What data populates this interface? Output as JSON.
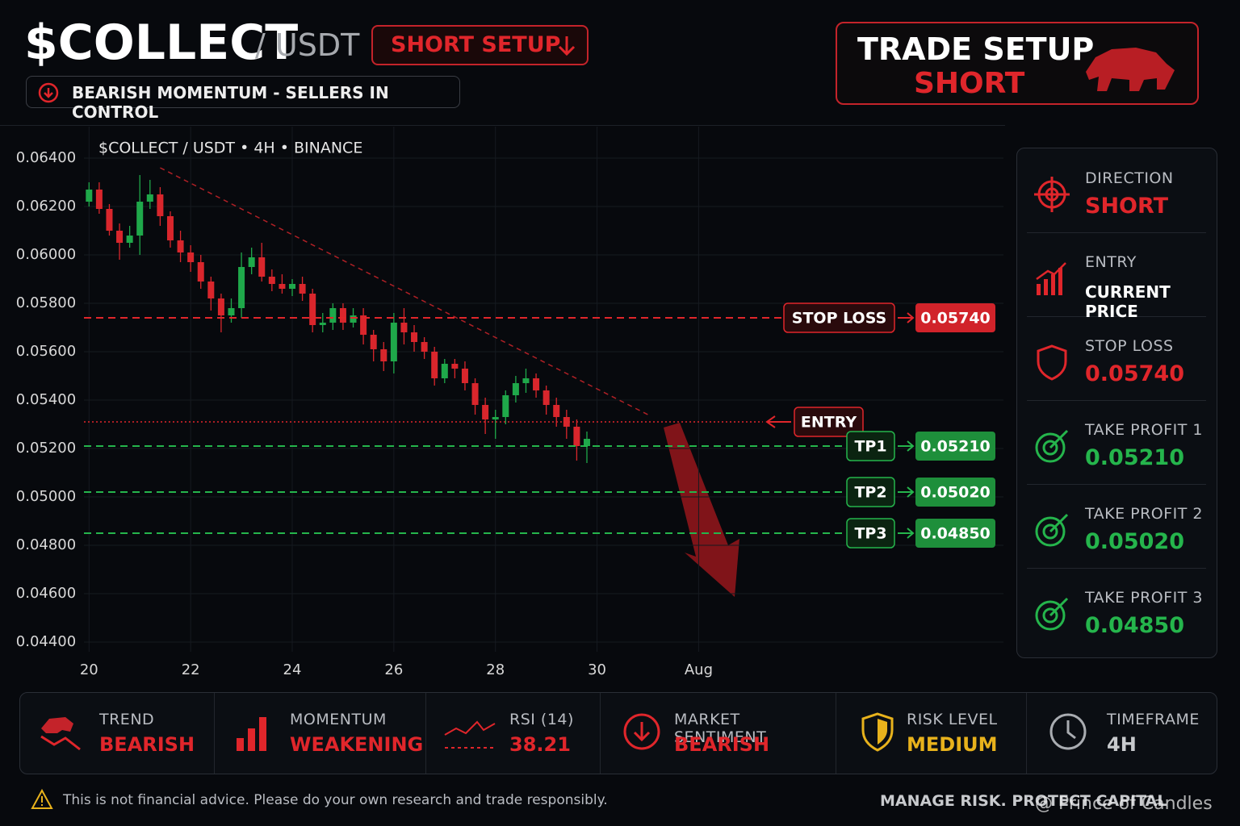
{
  "header": {
    "symbol": "$COLLECT",
    "pair": "/ USDT",
    "badge": "SHORT SETUP",
    "subtitle": "BEARISH MOMENTUM - SELLERS IN CONTROL",
    "setup_title": "TRADE SETUP",
    "setup_side": "SHORT"
  },
  "chart_data": {
    "type": "candlestick",
    "title": "$COLLECT / USDT • 4H • BINANCE",
    "candles": {
      "x": [
        20.0,
        20.2,
        20.4,
        20.6,
        20.8,
        21.0,
        21.2,
        21.4,
        21.6,
        21.8,
        22.0,
        22.2,
        22.4,
        22.6,
        22.8,
        23.0,
        23.2,
        23.4,
        23.6,
        23.8,
        24.0,
        24.2,
        24.4,
        24.6,
        24.8,
        25.0,
        25.2,
        25.4,
        25.6,
        25.8,
        26.0,
        26.2,
        26.4,
        26.6,
        26.8,
        27.0,
        27.2,
        27.4,
        27.6,
        27.8,
        28.0,
        28.2,
        28.4,
        28.6,
        28.8,
        29.0,
        29.2,
        29.4,
        29.6,
        29.8
      ],
      "open": [
        0.0622,
        0.0627,
        0.0619,
        0.061,
        0.0605,
        0.0608,
        0.0622,
        0.0625,
        0.0616,
        0.0606,
        0.0601,
        0.0597,
        0.0589,
        0.0582,
        0.0575,
        0.0578,
        0.0595,
        0.0599,
        0.0591,
        0.0588,
        0.0586,
        0.0588,
        0.0584,
        0.0571,
        0.0572,
        0.0578,
        0.0572,
        0.0575,
        0.0567,
        0.0561,
        0.0556,
        0.0572,
        0.0568,
        0.0564,
        0.056,
        0.0549,
        0.0555,
        0.0553,
        0.0547,
        0.0538,
        0.0532,
        0.0533,
        0.0542,
        0.0547,
        0.0549,
        0.0544,
        0.0538,
        0.0533,
        0.0529,
        0.0521
      ],
      "high": [
        0.063,
        0.063,
        0.0621,
        0.0613,
        0.0612,
        0.0633,
        0.0631,
        0.0628,
        0.0618,
        0.061,
        0.0604,
        0.06,
        0.0591,
        0.0584,
        0.0582,
        0.0601,
        0.0603,
        0.0605,
        0.0594,
        0.0592,
        0.059,
        0.0591,
        0.0586,
        0.0576,
        0.058,
        0.058,
        0.0578,
        0.0578,
        0.0569,
        0.0564,
        0.0576,
        0.0578,
        0.0571,
        0.0566,
        0.0562,
        0.0557,
        0.0557,
        0.0556,
        0.0549,
        0.0541,
        0.0536,
        0.0544,
        0.055,
        0.0553,
        0.0551,
        0.0546,
        0.0541,
        0.0536,
        0.0532,
        0.0527
      ],
      "low": [
        0.062,
        0.0617,
        0.0608,
        0.0598,
        0.0603,
        0.06,
        0.0619,
        0.0612,
        0.0603,
        0.0597,
        0.0593,
        0.0586,
        0.0577,
        0.0568,
        0.0572,
        0.0574,
        0.0592,
        0.0589,
        0.0585,
        0.0584,
        0.0583,
        0.0581,
        0.0568,
        0.0568,
        0.0569,
        0.0569,
        0.057,
        0.0563,
        0.0556,
        0.0552,
        0.0551,
        0.0563,
        0.056,
        0.0557,
        0.0546,
        0.0547,
        0.0549,
        0.0544,
        0.0534,
        0.0526,
        0.0524,
        0.053,
        0.0539,
        0.0543,
        0.0541,
        0.0534,
        0.0529,
        0.0524,
        0.0515,
        0.0514
      ],
      "close": [
        0.0627,
        0.0619,
        0.061,
        0.0605,
        0.0608,
        0.0622,
        0.0625,
        0.0616,
        0.0606,
        0.0601,
        0.0597,
        0.0589,
        0.0582,
        0.0575,
        0.0578,
        0.0595,
        0.0599,
        0.0591,
        0.0588,
        0.0586,
        0.0588,
        0.0584,
        0.0571,
        0.0572,
        0.0578,
        0.0572,
        0.0575,
        0.0567,
        0.0561,
        0.0556,
        0.0572,
        0.0568,
        0.0564,
        0.056,
        0.0549,
        0.0555,
        0.0553,
        0.0547,
        0.0538,
        0.0532,
        0.0533,
        0.0542,
        0.0547,
        0.0549,
        0.0544,
        0.0538,
        0.0533,
        0.0529,
        0.0521,
        0.0524
      ]
    },
    "up_color": "#1fa84a",
    "down_color": "#d9262c",
    "xlim": [
      19.9,
      38.0
    ],
    "xticks": [
      20,
      22,
      24,
      26,
      28,
      30,
      {
        "value": 32,
        "label": "Aug"
      }
    ],
    "ylim": [
      0.0436,
      0.0653
    ],
    "yticks": [
      {
        "value": 0.044,
        "label": "0.04400"
      },
      {
        "value": 0.046,
        "label": "0.04600"
      },
      {
        "value": 0.048,
        "label": "0.04800"
      },
      {
        "value": 0.05,
        "label": "0.05000"
      },
      {
        "value": 0.052,
        "label": "0.05200"
      },
      {
        "value": 0.054,
        "label": "0.05400"
      },
      {
        "value": 0.056,
        "label": "0.05600"
      },
      {
        "value": 0.058,
        "label": "0.05800"
      },
      {
        "value": 0.06,
        "label": "0.06000"
      },
      {
        "value": 0.062,
        "label": "0.06200"
      },
      {
        "value": 0.064,
        "label": "0.06400"
      }
    ],
    "grid": true,
    "trendline": {
      "x": [
        21.4,
        31.0
      ],
      "y": [
        0.0636,
        0.0534
      ],
      "color": "#d9262c"
    },
    "levels": [
      {
        "name": "STOP LOSS",
        "value": 0.0574,
        "label": "0.05740",
        "color": "#e0262b"
      },
      {
        "name": "ENTRY",
        "value": 0.0531,
        "color": "#e0262b"
      },
      {
        "name": "TP1",
        "value": 0.0521,
        "label": "0.05210",
        "color": "#25b54c"
      },
      {
        "name": "TP2",
        "value": 0.0502,
        "label": "0.05020",
        "color": "#25b54c"
      },
      {
        "name": "TP3",
        "value": 0.0485,
        "label": "0.04850",
        "color": "#25b54c"
      }
    ]
  },
  "side_panel": [
    {
      "label": "DIRECTION",
      "value": "SHORT"
    },
    {
      "label": "ENTRY",
      "value": "CURRENT PRICE"
    },
    {
      "label": "STOP LOSS",
      "value": "0.05740"
    },
    {
      "label": "TAKE PROFIT 1",
      "value": "0.05210"
    },
    {
      "label": "TAKE PROFIT 2",
      "value": "0.05020"
    },
    {
      "label": "TAKE PROFIT 3",
      "value": "0.04850"
    }
  ],
  "stats": [
    {
      "label": "TREND",
      "value": "BEARISH"
    },
    {
      "label": "MOMENTUM",
      "value": "WEAKENING"
    },
    {
      "label": "RSI (14)",
      "value": "38.21"
    },
    {
      "label": "MARKET SENTIMENT",
      "value": "BEARISH"
    },
    {
      "label": "RISK LEVEL",
      "value": "MEDIUM"
    },
    {
      "label": "TIMEFRAME",
      "value": "4H"
    }
  ],
  "footer": {
    "disclaimer": "This is not financial advice. Please do your own research and trade responsibly.",
    "motto": "MANAGE RISK. PROTECT CAPITAL",
    "watermark": "@ Prince of Candles"
  }
}
